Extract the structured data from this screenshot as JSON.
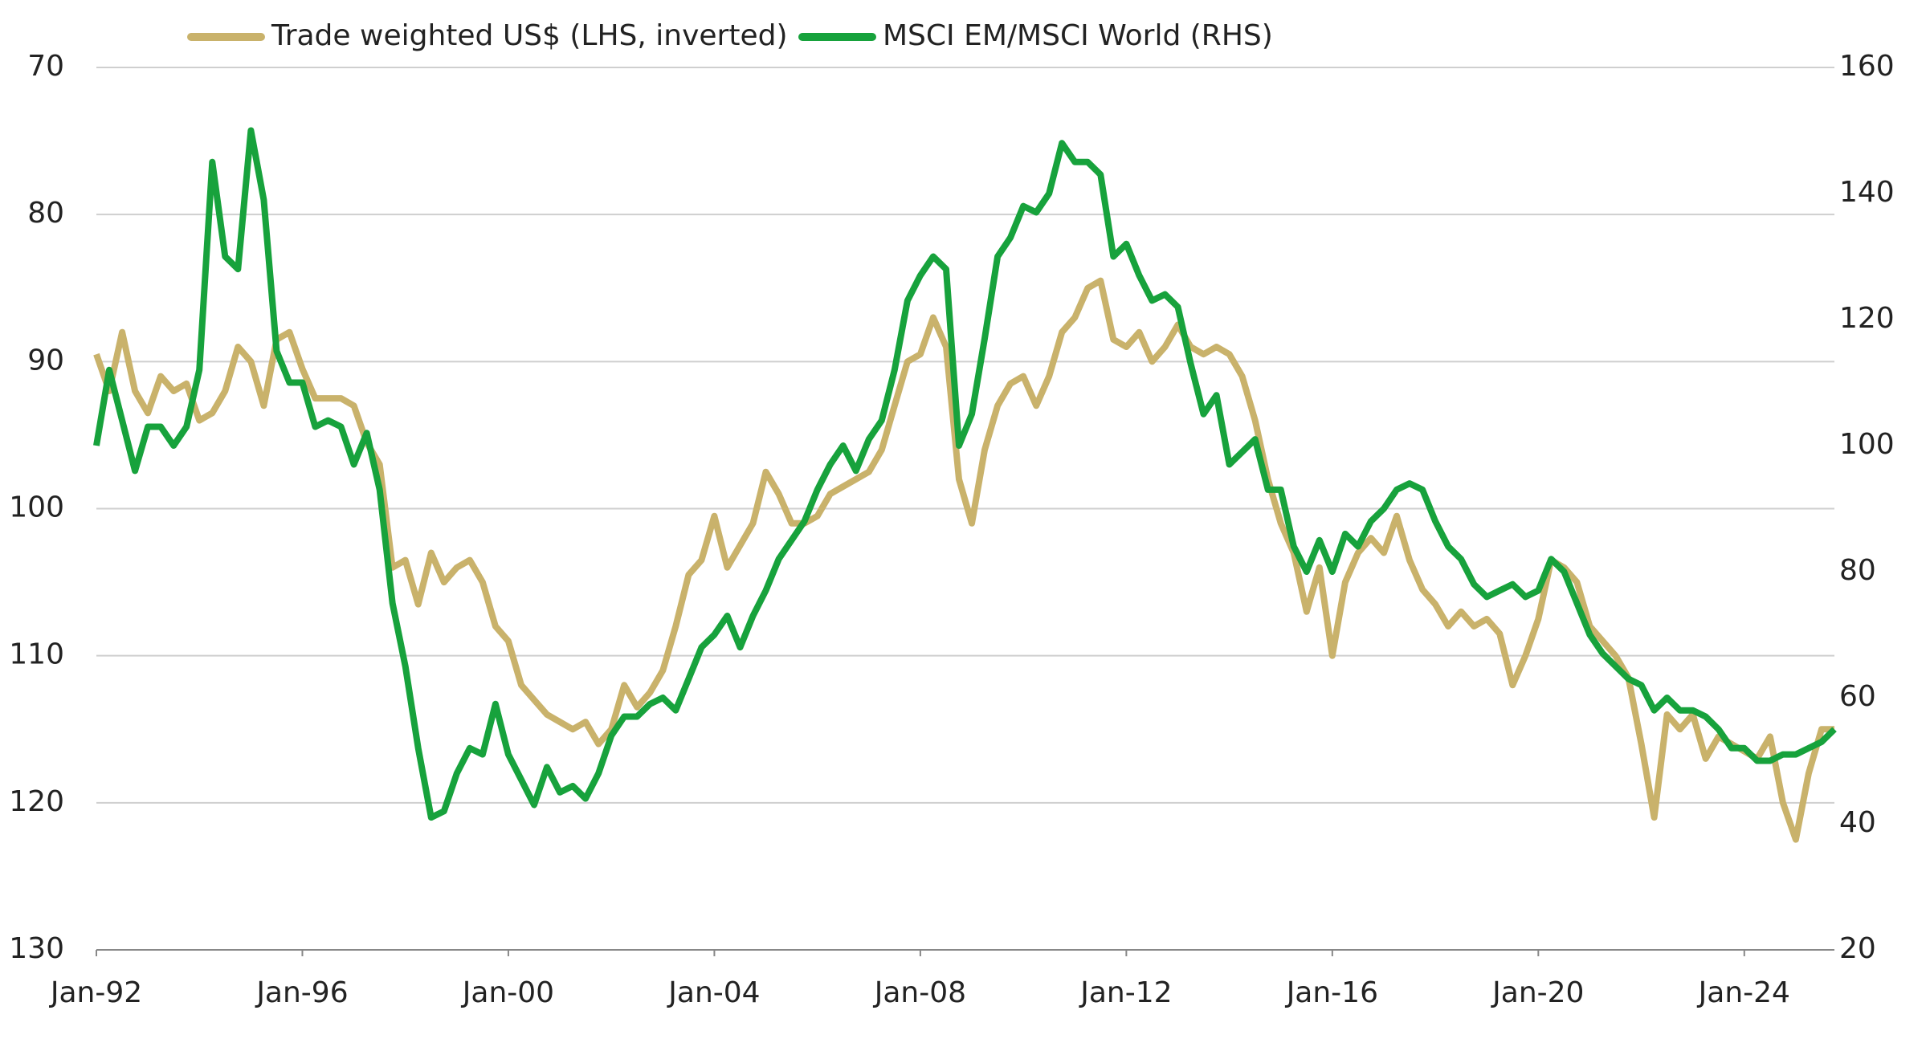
{
  "chart_data": {
    "type": "line",
    "x": [
      "1992-01",
      "1992-04",
      "1992-07",
      "1992-10",
      "1993-01",
      "1993-04",
      "1993-07",
      "1993-10",
      "1994-01",
      "1994-04",
      "1994-07",
      "1994-10",
      "1995-01",
      "1995-04",
      "1995-07",
      "1995-10",
      "1996-01",
      "1996-04",
      "1996-07",
      "1996-10",
      "1997-01",
      "1997-04",
      "1997-07",
      "1997-10",
      "1998-01",
      "1998-04",
      "1998-07",
      "1998-10",
      "1999-01",
      "1999-04",
      "1999-07",
      "1999-10",
      "2000-01",
      "2000-04",
      "2000-07",
      "2000-10",
      "2001-01",
      "2001-04",
      "2001-07",
      "2001-10",
      "2002-01",
      "2002-04",
      "2002-07",
      "2002-10",
      "2003-01",
      "2003-04",
      "2003-07",
      "2003-10",
      "2004-01",
      "2004-04",
      "2004-07",
      "2004-10",
      "2005-01",
      "2005-04",
      "2005-07",
      "2005-10",
      "2006-01",
      "2006-04",
      "2006-07",
      "2006-10",
      "2007-01",
      "2007-04",
      "2007-07",
      "2007-10",
      "2008-01",
      "2008-04",
      "2008-07",
      "2008-10",
      "2009-01",
      "2009-04",
      "2009-07",
      "2009-10",
      "2010-01",
      "2010-04",
      "2010-07",
      "2010-10",
      "2011-01",
      "2011-04",
      "2011-07",
      "2011-10",
      "2012-01",
      "2012-04",
      "2012-07",
      "2012-10",
      "2013-01",
      "2013-04",
      "2013-07",
      "2013-10",
      "2014-01",
      "2014-04",
      "2014-07",
      "2014-10",
      "2015-01",
      "2015-04",
      "2015-07",
      "2015-10",
      "2016-01",
      "2016-04",
      "2016-07",
      "2016-10",
      "2017-01",
      "2017-04",
      "2017-07",
      "2017-10",
      "2018-01",
      "2018-04",
      "2018-07",
      "2018-10",
      "2019-01",
      "2019-04",
      "2019-07",
      "2019-10",
      "2020-01",
      "2020-04",
      "2020-07",
      "2020-10",
      "2021-01",
      "2021-04",
      "2021-07",
      "2021-10",
      "2022-01",
      "2022-04",
      "2022-07",
      "2022-10",
      "2023-01",
      "2023-04",
      "2023-07",
      "2023-10",
      "2024-01",
      "2024-04",
      "2024-07",
      "2024-10",
      "2025-01",
      "2025-04",
      "2025-07",
      "2025-10"
    ],
    "series": [
      {
        "name": "Trade weighted US$ (LHS, inverted)",
        "color": "#c9b26b",
        "axis": "y",
        "values": [
          89.5,
          92,
          88,
          92,
          93.5,
          91,
          92,
          91.5,
          94,
          93.5,
          92,
          89,
          90,
          93,
          88.5,
          88,
          90.5,
          92.5,
          92.5,
          92.5,
          93,
          95.5,
          97,
          104,
          103.5,
          106.5,
          103,
          105,
          104,
          103.5,
          105,
          108,
          109,
          112,
          113,
          114,
          114.5,
          115,
          114.5,
          116,
          115,
          112,
          113.5,
          112.5,
          111,
          108,
          104.5,
          103.5,
          100.5,
          104,
          102.5,
          101,
          97.5,
          99,
          101,
          101,
          100.5,
          99,
          98.5,
          98,
          97.5,
          96,
          93,
          90,
          89.5,
          87,
          89,
          98,
          101,
          96,
          93,
          91.5,
          91,
          93,
          91,
          88,
          87,
          85,
          84.5,
          88.5,
          89,
          88,
          90,
          89,
          87.5,
          89,
          89.5,
          89,
          89.5,
          91,
          94,
          98,
          101,
          103,
          107,
          104,
          110,
          105,
          103,
          102,
          103,
          100.5,
          103.5,
          105.5,
          106.5,
          108,
          107,
          108,
          107.5,
          108.5,
          112,
          110,
          107.5,
          103.5,
          104,
          105,
          108,
          109,
          110,
          111.5,
          116,
          121,
          114,
          115,
          114,
          117,
          115.5,
          116,
          116.5,
          117,
          115.5,
          120,
          122.5,
          118,
          115,
          115
        ]
      },
      {
        "name": "MSCI EM/MSCI World (RHS)",
        "color": "#17a23c",
        "axis": "y2",
        "values": [
          100,
          112,
          104,
          96,
          103,
          103,
          100,
          103,
          112,
          145,
          130,
          128,
          150,
          139,
          115,
          110,
          110,
          103,
          104,
          103,
          97,
          102,
          93,
          75,
          65,
          52,
          41,
          42,
          48,
          52,
          51,
          59,
          51,
          47,
          43,
          49,
          45,
          46,
          44,
          48,
          54,
          57,
          57,
          59,
          60,
          58,
          63,
          68,
          70,
          73,
          68,
          73,
          77,
          82,
          85,
          88,
          93,
          97,
          100,
          96,
          101,
          104,
          112,
          123,
          127,
          130,
          128,
          100,
          105,
          117,
          130,
          133,
          138,
          137,
          140,
          148,
          145,
          145,
          143,
          130,
          132,
          127,
          123,
          124,
          122,
          113,
          105,
          108,
          97,
          99,
          101,
          93,
          93,
          84,
          80,
          85,
          80,
          86,
          84,
          88,
          90,
          93,
          94,
          93,
          88,
          84,
          82,
          78,
          76,
          77,
          78,
          76,
          77,
          82,
          80,
          75,
          70,
          67,
          65,
          63,
          62,
          58,
          60,
          58,
          58,
          57,
          55,
          52,
          52,
          50,
          50,
          51,
          51,
          52,
          53,
          55
        ]
      }
    ],
    "xlim": [
      "1992-01",
      "2025-10"
    ],
    "xticks": [
      {
        "value": "1992-01",
        "label": "Jan-92"
      },
      {
        "value": "1996-01",
        "label": "Jan-96"
      },
      {
        "value": "2000-01",
        "label": "Jan-00"
      },
      {
        "value": "2004-01",
        "label": "Jan-04"
      },
      {
        "value": "2008-01",
        "label": "Jan-08"
      },
      {
        "value": "2012-01",
        "label": "Jan-12"
      },
      {
        "value": "2016-01",
        "label": "Jan-16"
      },
      {
        "value": "2020-01",
        "label": "Jan-20"
      },
      {
        "value": "2024-01",
        "label": "Jan-24"
      }
    ],
    "ylim": [
      70,
      130
    ],
    "yticks": [
      70,
      80,
      90,
      100,
      110,
      120,
      130
    ],
    "y_inverted": true,
    "y2lim": [
      20,
      160
    ],
    "y2ticks": [
      20,
      40,
      60,
      80,
      100,
      120,
      140,
      160
    ],
    "grid": true,
    "legend": "top"
  }
}
